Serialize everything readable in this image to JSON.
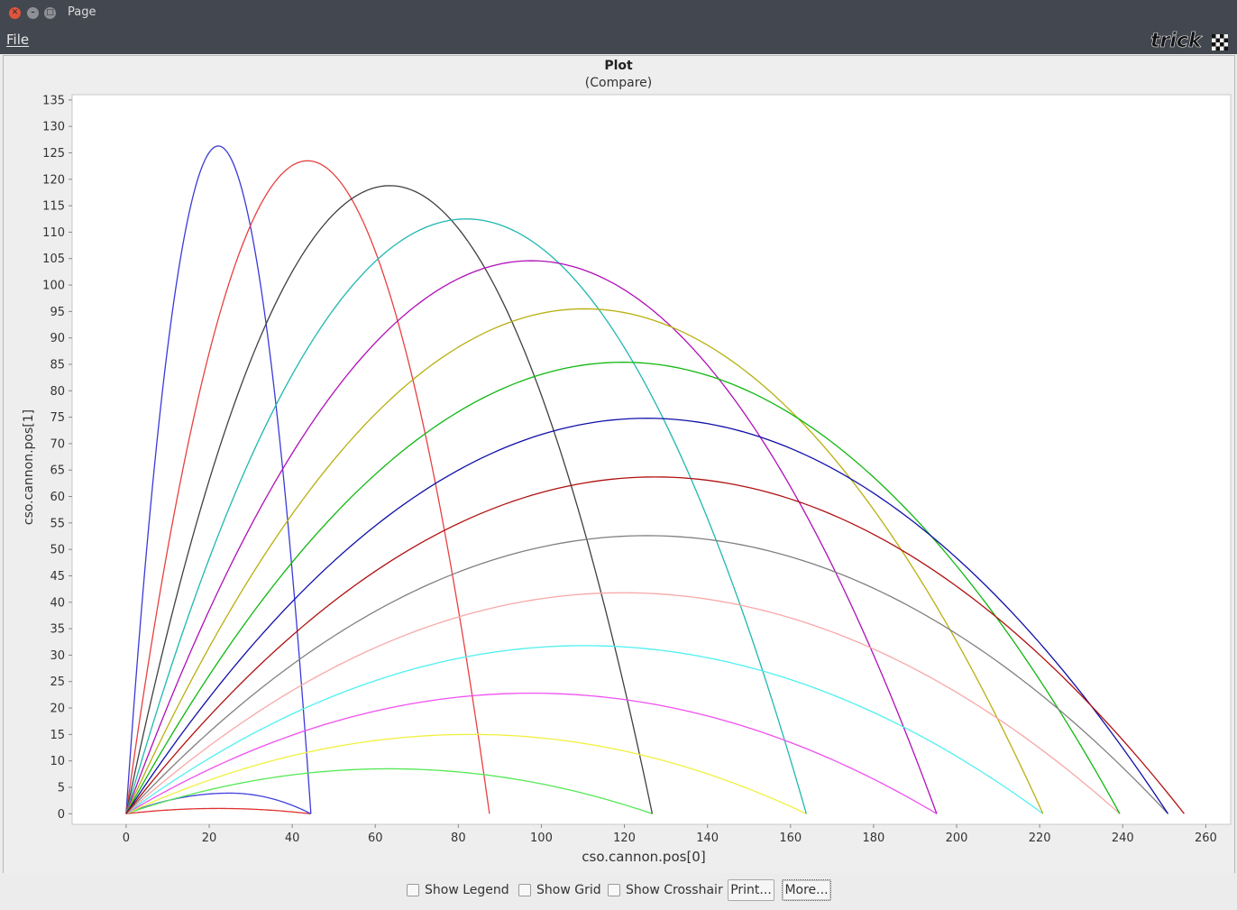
{
  "window": {
    "title": "Page"
  },
  "menu": {
    "file": "File"
  },
  "logo": {
    "text": "trick"
  },
  "chart_data": {
    "type": "line",
    "title": "Plot",
    "subtitle": "(Compare)",
    "xlabel": "cso.cannon.pos[0]",
    "ylabel": "cso.cannon.pos[1]",
    "xlim": [
      -13,
      266
    ],
    "ylim": [
      -2,
      136
    ],
    "xticks": [
      0,
      20,
      40,
      60,
      80,
      100,
      120,
      140,
      160,
      180,
      200,
      220,
      240,
      260
    ],
    "yticks": [
      0,
      5,
      10,
      15,
      20,
      25,
      30,
      35,
      40,
      45,
      50,
      55,
      60,
      65,
      70,
      75,
      80,
      85,
      90,
      95,
      100,
      105,
      110,
      115,
      120,
      125,
      130,
      135
    ],
    "grid": false,
    "legend": false,
    "series": [
      {
        "color": "#e03030",
        "range": 44.3,
        "peak_x": 22.2,
        "peak_y": 1.0
      },
      {
        "color": "#3a3ad8",
        "range": 44.5,
        "peak_x": 22.2,
        "peak_y": 126.3
      },
      {
        "color": "#4040e0",
        "range": 44.5,
        "peak_x": 25.0,
        "peak_y": 3.9
      },
      {
        "color": "#e84040",
        "range": 87.5,
        "peak_x": 43.7,
        "peak_y": 123.5
      },
      {
        "color": "#55e855",
        "range": 126.7,
        "peak_x": 63.3,
        "peak_y": 8.5
      },
      {
        "color": "#404040",
        "range": 126.7,
        "peak_x": 63.5,
        "peak_y": 118.8
      },
      {
        "color": "#f0f040",
        "range": 163.8,
        "peak_x": 83.0,
        "peak_y": 15.0
      },
      {
        "color": "#20b8b0",
        "range": 163.8,
        "peak_x": 81.9,
        "peak_y": 112.5
      },
      {
        "color": "#f050f0",
        "range": 195.2,
        "peak_x": 97.6,
        "peak_y": 22.8
      },
      {
        "color": "#b010b8",
        "range": 195.2,
        "peak_x": 97.6,
        "peak_y": 104.6
      },
      {
        "color": "#50f0f0",
        "range": 220.8,
        "peak_x": 110.4,
        "peak_y": 31.8
      },
      {
        "color": "#b8b010",
        "range": 220.8,
        "peak_x": 110.4,
        "peak_y": 95.5
      },
      {
        "color": "#f8a8a8",
        "range": 239.3,
        "peak_x": 119.6,
        "peak_y": 41.8
      },
      {
        "color": "#10b810",
        "range": 239.3,
        "peak_x": 119.6,
        "peak_y": 85.4
      },
      {
        "color": "#808080",
        "range": 250.9,
        "peak_x": 125.4,
        "peak_y": 52.6
      },
      {
        "color": "#1010a8",
        "range": 250.9,
        "peak_x": 125.4,
        "peak_y": 74.8
      },
      {
        "color": "#b01010",
        "range": 254.8,
        "peak_x": 127.4,
        "peak_y": 63.7
      }
    ]
  },
  "controls": {
    "show_legend": "Show Legend",
    "show_grid": "Show Grid",
    "show_crosshair": "Show Crosshair",
    "print": "Print...",
    "more": "More..."
  }
}
